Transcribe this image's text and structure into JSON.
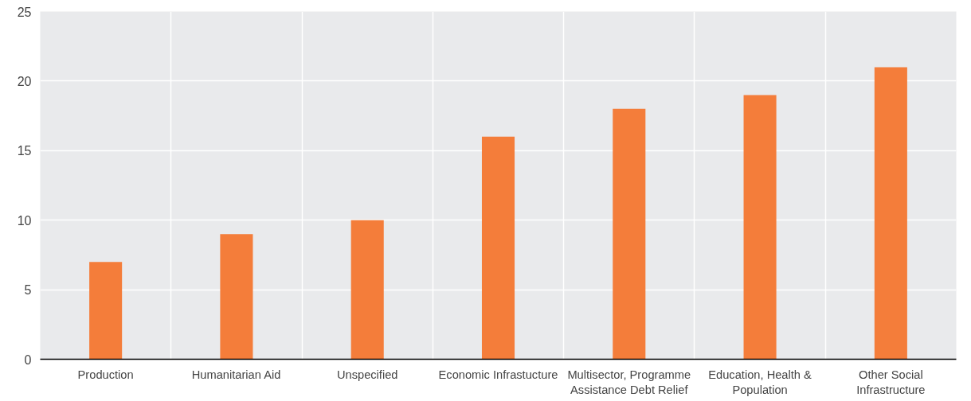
{
  "chart_data": {
    "type": "bar",
    "categories": [
      "Production",
      "Humanitarian Aid",
      "Unspecified",
      "Economic Infrastucture",
      "Multisector, Programme Assistance Debt Relief",
      "Education, Health & Population",
      "Other Social Infrastructure"
    ],
    "values": [
      7,
      9,
      10,
      16,
      18,
      19,
      21
    ],
    "color": "#f47d3a",
    "ylim": [
      0,
      25
    ],
    "yticks": [
      0,
      5,
      10,
      15,
      20,
      25
    ],
    "grid": true
  }
}
